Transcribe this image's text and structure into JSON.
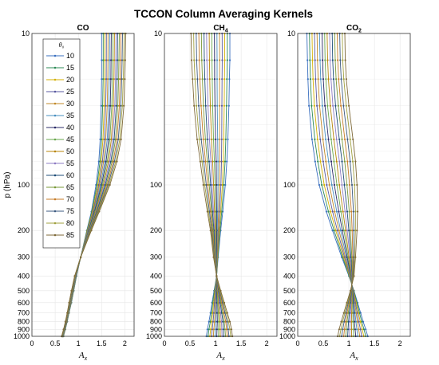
{
  "title": "TCCON Column Averaging Kernels",
  "legend": {
    "title": "θ₀",
    "angles": [
      10,
      15,
      20,
      25,
      30,
      35,
      40,
      45,
      50,
      55,
      60,
      65,
      70,
      75,
      80,
      85
    ],
    "colors": [
      "#3a6fbf",
      "#2e8b57",
      "#d4b106",
      "#5a5aa0",
      "#c28a2a",
      "#4a90c0",
      "#2c2c6a",
      "#6aa84f",
      "#b8860b",
      "#8e7cc3",
      "#1f4e79",
      "#7a9a3a",
      "#c77d2a",
      "#3d5a80",
      "#a0a040",
      "#7f6a3a"
    ],
    "placement": "top-left of first panel"
  },
  "chart_data": [
    {
      "type": "line",
      "title": "CO",
      "xlabel": "A",
      "xlabel_sub": "x",
      "ylabel": "p (hPa)",
      "xlim": [
        0,
        2.2
      ],
      "ylim": [
        1000,
        10
      ],
      "yscale": "log",
      "grid": true,
      "xticks": [
        "0",
        "0.5",
        "1",
        "1.5",
        "2"
      ],
      "yticks": [
        "10",
        "100",
        "200",
        "300",
        "400",
        "500",
        "600",
        "700",
        "800",
        "900",
        "1000"
      ],
      "p": [
        10,
        15,
        20,
        30,
        50,
        70,
        100,
        150,
        200,
        300,
        400,
        500,
        600,
        700,
        800,
        900,
        1000
      ],
      "series": [
        {
          "angle": 10,
          "values": [
            1.5,
            1.5,
            1.5,
            1.49,
            1.47,
            1.44,
            1.38,
            1.28,
            1.18,
            1.05,
            0.96,
            0.9,
            0.85,
            0.8,
            0.76,
            0.72,
            0.68
          ]
        },
        {
          "angle": 85,
          "values": [
            2.02,
            2.01,
            2.0,
            1.98,
            1.92,
            1.83,
            1.68,
            1.45,
            1.28,
            1.05,
            0.92,
            0.85,
            0.8,
            0.76,
            0.72,
            0.68,
            0.64
          ]
        }
      ]
    },
    {
      "type": "line",
      "title": "CH",
      "title_sub": "4",
      "xlabel": "A",
      "xlabel_sub": "x",
      "xlim": [
        0,
        2.2
      ],
      "ylim": [
        1000,
        10
      ],
      "yscale": "log",
      "grid": true,
      "xticks": [
        "0",
        "0.5",
        "1",
        "1.5",
        "2"
      ],
      "yticks": [
        "10",
        "100",
        "200",
        "300",
        "400",
        "500",
        "600",
        "700",
        "800",
        "900",
        "1000"
      ],
      "p": [
        10,
        15,
        20,
        30,
        50,
        70,
        100,
        150,
        200,
        300,
        400,
        500,
        600,
        700,
        800,
        900,
        1000
      ],
      "series": [
        {
          "angle": 10,
          "values": [
            1.28,
            1.28,
            1.27,
            1.26,
            1.24,
            1.22,
            1.19,
            1.14,
            1.1,
            1.05,
            1.02,
            0.97,
            0.93,
            0.9,
            0.87,
            0.84,
            0.82
          ]
        },
        {
          "angle": 85,
          "values": [
            0.52,
            0.53,
            0.55,
            0.58,
            0.64,
            0.7,
            0.76,
            0.84,
            0.9,
            0.96,
            1.02,
            1.1,
            1.17,
            1.23,
            1.28,
            1.31,
            1.33
          ]
        }
      ]
    },
    {
      "type": "line",
      "title": "CO",
      "title_sub": "2",
      "xlabel": "A",
      "xlabel_sub": "x",
      "xlim": [
        0,
        2.2
      ],
      "ylim": [
        1000,
        10
      ],
      "yscale": "log",
      "grid": true,
      "xticks": [
        "0",
        "0.5",
        "1",
        "1.5",
        "2"
      ],
      "yticks": [
        "10",
        "100",
        "200",
        "300",
        "400",
        "500",
        "600",
        "700",
        "800",
        "900",
        "1000"
      ],
      "p": [
        10,
        15,
        20,
        30,
        50,
        70,
        100,
        150,
        200,
        300,
        400,
        500,
        600,
        700,
        800,
        900,
        1000
      ],
      "series": [
        {
          "angle": 10,
          "values": [
            0.18,
            0.19,
            0.2,
            0.22,
            0.28,
            0.34,
            0.42,
            0.56,
            0.68,
            0.86,
            1.0,
            1.1,
            1.17,
            1.23,
            1.28,
            1.33,
            1.37
          ]
        },
        {
          "angle": 85,
          "values": [
            0.92,
            0.93,
            0.95,
            1.0,
            1.08,
            1.13,
            1.16,
            1.17,
            1.16,
            1.13,
            1.1,
            1.03,
            0.96,
            0.9,
            0.85,
            0.81,
            0.78
          ]
        }
      ]
    }
  ]
}
